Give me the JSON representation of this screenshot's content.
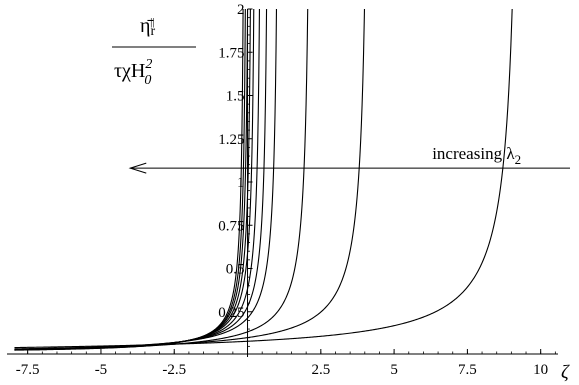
{
  "chart_data": {
    "type": "line",
    "title": "",
    "xlabel": "ζ",
    "ylabel_numerator": "η̄ʳᴵᴵ",
    "ylabel_numerator_base": "η̄",
    "ylabel_numerator_sub": "r",
    "ylabel_numerator_sup": "||",
    "ylabel_denominator_base": "τχH",
    "ylabel_denominator_sub": "0",
    "ylabel_denominator_sup": "2",
    "xlim": [
      -8.0,
      11.0
    ],
    "ylim": [
      0.0,
      2.0
    ],
    "x_ticks": [
      -7.5,
      -5,
      -2.5,
      2.5,
      5,
      7.5,
      10
    ],
    "x_tick_labels": [
      "-7.5",
      "-5",
      "-2.5",
      "2.5",
      "5",
      "7.5",
      "10"
    ],
    "y_ticks": [
      0.25,
      0.5,
      0.75,
      1,
      1.25,
      1.5,
      1.75,
      2
    ],
    "y_tick_labels": [
      "0.25",
      "0.5",
      "0.75",
      "1",
      "1.25",
      "1.5",
      "1.75",
      "2"
    ],
    "annotation": {
      "text": "increasing λ",
      "base": "increasing λ",
      "sub": "2",
      "arrow_from": [
        11.0,
        1.08
      ],
      "arrow_to": [
        -4.0,
        1.08
      ],
      "direction": "left"
    },
    "series": [
      {
        "asymptote": -0.08,
        "scale": 0.142,
        "offset": 0.01
      },
      {
        "asymptote": 0.0,
        "scale": 0.149,
        "offset": 0.01
      },
      {
        "asymptote": 0.08,
        "scale": 0.156,
        "offset": 0.01
      },
      {
        "asymptote": 0.18,
        "scale": 0.164,
        "offset": 0.01
      },
      {
        "asymptote": 0.3,
        "scale": 0.173,
        "offset": 0.01
      },
      {
        "asymptote": 0.5,
        "scale": 0.186,
        "offset": 0.01
      },
      {
        "asymptote": 0.75,
        "scale": 0.202,
        "offset": 0.01
      },
      {
        "asymptote": 1.1,
        "scale": 0.224,
        "offset": 0.01
      },
      {
        "asymptote": 2.2,
        "scale": 0.294,
        "offset": 0.0
      },
      {
        "asymptote": 4.2,
        "scale": 0.422,
        "offset": 0.0
      },
      {
        "asymptote": 9.4,
        "scale": 0.746,
        "offset": 0.0
      }
    ]
  }
}
